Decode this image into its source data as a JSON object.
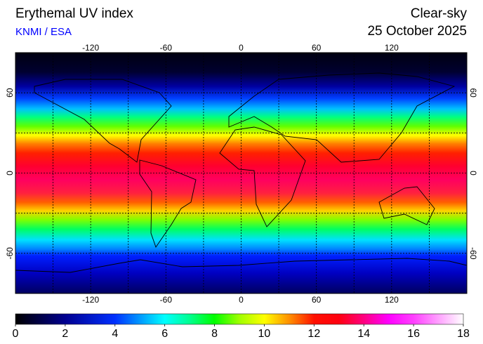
{
  "header": {
    "title": "Erythemal UV index",
    "source": "KNMI / ESA",
    "condition": "Clear-sky",
    "date": "25 October 2025"
  },
  "map": {
    "lon_range": [
      -180,
      180
    ],
    "lat_range": [
      90,
      -90
    ],
    "lon_ticks": [
      -120,
      -60,
      0,
      60,
      120
    ],
    "lat_ticks": [
      60,
      0,
      -60
    ]
  },
  "colorbar": {
    "ticks": [
      0,
      2,
      4,
      6,
      8,
      10,
      12,
      14,
      16,
      18
    ]
  }
}
